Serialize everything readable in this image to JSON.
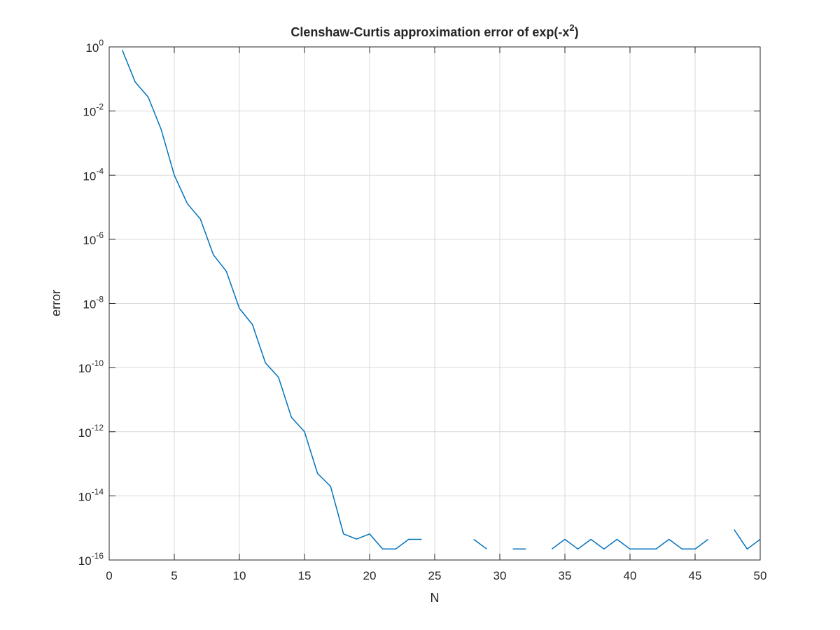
{
  "chart_data": {
    "type": "line",
    "title_main": "Clenshaw-Curtis approximation error of exp(-x",
    "title_sup": "2",
    "title_end": ")",
    "xlabel": "N",
    "ylabel": "error",
    "xscale": "linear",
    "yscale": "log",
    "xlim": [
      0,
      50
    ],
    "ylim": [
      1e-16,
      1
    ],
    "grid": true,
    "box": true,
    "line_color": "#0072BD",
    "grid_color": "#d9d9d9",
    "axis_color": "#262626",
    "xticks": [
      {
        "value": 0,
        "label": "0"
      },
      {
        "value": 5,
        "label": "5"
      },
      {
        "value": 10,
        "label": "10"
      },
      {
        "value": 15,
        "label": "15"
      },
      {
        "value": 20,
        "label": "20"
      },
      {
        "value": 25,
        "label": "25"
      },
      {
        "value": 30,
        "label": "30"
      },
      {
        "value": 35,
        "label": "35"
      },
      {
        "value": 40,
        "label": "40"
      },
      {
        "value": 45,
        "label": "45"
      },
      {
        "value": 50,
        "label": "50"
      }
    ],
    "yticks": [
      {
        "exp": 0,
        "base": "10",
        "sup": "0"
      },
      {
        "exp": -2,
        "base": "10",
        "sup": "-2"
      },
      {
        "exp": -4,
        "base": "10",
        "sup": "-4"
      },
      {
        "exp": -6,
        "base": "10",
        "sup": "-6"
      },
      {
        "exp": -8,
        "base": "10",
        "sup": "-8"
      },
      {
        "exp": -10,
        "base": "10",
        "sup": "-10"
      },
      {
        "exp": -12,
        "base": "10",
        "sup": "-12"
      },
      {
        "exp": -14,
        "base": "10",
        "sup": "-14"
      },
      {
        "exp": -16,
        "base": "10",
        "sup": "-16"
      }
    ],
    "series": [
      {
        "x": [
          1,
          2,
          3,
          4,
          5,
          6,
          7,
          8,
          9,
          10,
          11,
          12,
          13,
          14,
          15,
          16,
          17,
          18,
          19,
          20,
          21,
          22,
          23,
          24,
          25,
          26,
          27,
          28,
          29,
          30,
          31,
          32,
          33,
          34,
          35,
          36,
          37,
          38,
          39,
          40,
          41,
          42,
          43,
          44,
          45,
          46,
          47,
          48,
          49,
          50
        ],
        "y": [
          0.8,
          0.08,
          0.027,
          0.0026,
          0.0001,
          1.3e-05,
          4.3e-06,
          3.3e-07,
          1e-07,
          7e-09,
          2.2e-09,
          1.4e-10,
          5e-11,
          2.8e-12,
          1e-12,
          5e-14,
          2e-14,
          6.5e-16,
          4.5e-16,
          6.5e-16,
          2.2e-16,
          2.2e-16,
          4.4e-16,
          4.4e-16,
          null,
          null,
          null,
          4.4e-16,
          2.2e-16,
          null,
          2.2e-16,
          2.2e-16,
          null,
          2.2e-16,
          4.4e-16,
          2.2e-16,
          4.4e-16,
          2.2e-16,
          4.4e-16,
          2.2e-16,
          2.2e-16,
          2.2e-16,
          4.4e-16,
          2.2e-16,
          2.2e-16,
          4.4e-16,
          null,
          8.9e-16,
          2.2e-16,
          4.4e-16
        ]
      }
    ]
  }
}
